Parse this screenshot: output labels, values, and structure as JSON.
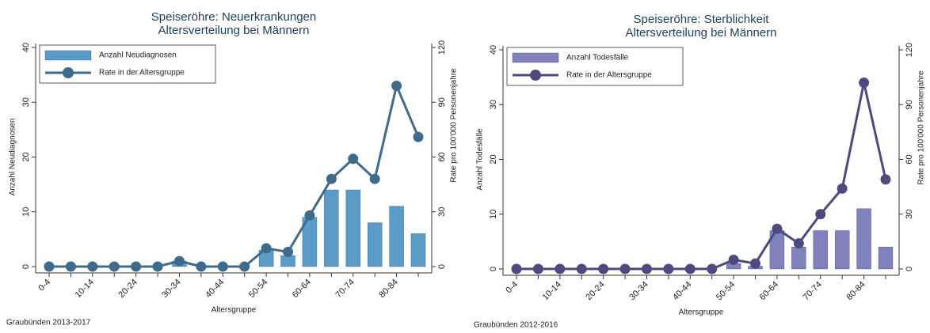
{
  "chart_data": [
    {
      "type": "combo",
      "title": "Speiseröhre: Neuerkrankungen",
      "subtitle": "Altersverteilung bei Männern",
      "xlabel": "Altersgruppe",
      "ylabel": "Anzahl Neudiagnosen",
      "y2label": "Rate pro 100'000 Personenjahre",
      "source": "Graubünden 2013-2017",
      "categories": [
        "0-4",
        null,
        "10-14",
        null,
        "20-24",
        null,
        "30-34",
        null,
        "40-44",
        null,
        "50-54",
        null,
        "60-64",
        null,
        "70-74",
        null,
        "80-84",
        null
      ],
      "series": [
        {
          "name": "Anzahl Neudiagnosen",
          "kind": "bar",
          "color": "#5b9bc8",
          "axis": "y",
          "values": [
            0,
            0,
            0,
            0,
            0,
            0,
            1,
            0,
            0,
            0,
            3,
            2,
            9,
            14,
            14,
            8,
            11,
            6
          ]
        },
        {
          "name": "Rate in der Altersgruppe",
          "kind": "line",
          "color": "#3e6b8b",
          "axis": "y2",
          "values": [
            0,
            0,
            0,
            0,
            0,
            0,
            3,
            0,
            0,
            0,
            10,
            8,
            28,
            48,
            59,
            48,
            99,
            71
          ]
        }
      ],
      "ylim": [
        0,
        40
      ],
      "yticks": [
        0,
        10,
        20,
        30,
        40
      ],
      "y2lim": [
        0,
        120
      ],
      "y2ticks": [
        0,
        30,
        60,
        90,
        120
      ]
    },
    {
      "type": "combo",
      "title": "Speiseröhre: Sterblichkeit",
      "subtitle": "Altersverteilung bei Männern",
      "xlabel": "Altersgruppe",
      "ylabel": "Anzahl Todesfälle",
      "y2label": "Rate pro 100'000 Personenjahre",
      "source": "Graubünden 2012-2016",
      "categories": [
        "0-4",
        null,
        "10-14",
        null,
        "20-24",
        null,
        "30-34",
        null,
        "40-44",
        null,
        "50-54",
        null,
        "60-64",
        null,
        "70-74",
        null,
        "80-84",
        null
      ],
      "series": [
        {
          "name": "Anzahl Todesfälle",
          "kind": "bar",
          "color": "#8181bd",
          "axis": "y",
          "values": [
            0,
            0,
            0,
            0,
            0,
            0,
            0,
            0,
            0,
            0,
            1,
            0.5,
            7,
            4,
            7,
            7,
            11,
            4
          ]
        },
        {
          "name": "Rate in der Altersgruppe",
          "kind": "line",
          "color": "#4e4a7f",
          "axis": "y2",
          "values": [
            0,
            0,
            0,
            0,
            0,
            0,
            0,
            0,
            0,
            0,
            5,
            3,
            22,
            14,
            30,
            44,
            102,
            49
          ]
        }
      ],
      "ylim": [
        0,
        40
      ],
      "yticks": [
        0,
        10,
        20,
        30,
        40
      ],
      "y2lim": [
        0,
        120
      ],
      "y2ticks": [
        0,
        30,
        60,
        90,
        120
      ]
    }
  ]
}
